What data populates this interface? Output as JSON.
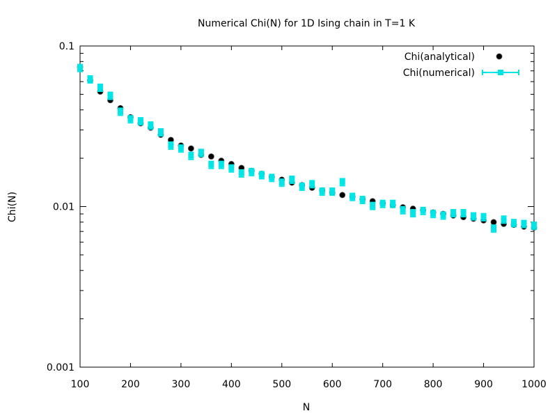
{
  "chart_data": {
    "type": "scatter",
    "title": "Numerical Chi(N) for 1D Ising chain in T=1 K",
    "xlabel": "N",
    "ylabel": "Chi(N)",
    "xlim": [
      100,
      1000
    ],
    "ylim": [
      0.001,
      0.1
    ],
    "yscale": "log",
    "x_ticks": [
      "100",
      "200",
      "300",
      "400",
      "500",
      "600",
      "700",
      "800",
      "900",
      "1000"
    ],
    "x_tick_values": [
      100,
      200,
      300,
      400,
      500,
      600,
      700,
      800,
      900,
      1000
    ],
    "y_ticks": [
      "0.001",
      "0.01",
      "0.1"
    ],
    "y_tick_values": [
      0.001,
      0.01,
      0.1
    ],
    "grid": false,
    "legend_position": "top-right",
    "x": [
      100,
      120,
      140,
      160,
      180,
      200,
      220,
      240,
      260,
      280,
      300,
      320,
      340,
      360,
      380,
      400,
      420,
      440,
      460,
      480,
      500,
      520,
      540,
      560,
      580,
      600,
      620,
      640,
      660,
      680,
      700,
      720,
      740,
      760,
      780,
      800,
      820,
      840,
      860,
      880,
      900,
      920,
      940,
      960,
      980,
      1000
    ],
    "series": [
      {
        "name": "Chi(analytical)",
        "color": "#000000",
        "marker": "filled-circle",
        "values": [
          0.074,
          0.061,
          0.052,
          0.046,
          0.041,
          0.036,
          0.033,
          0.031,
          0.028,
          0.026,
          0.024,
          0.023,
          0.021,
          0.0205,
          0.0193,
          0.0184,
          0.0174,
          0.0167,
          0.016,
          0.0153,
          0.0147,
          0.0141,
          0.0136,
          0.0131,
          0.0126,
          0.0122,
          0.0118,
          0.0115,
          0.0111,
          0.0108,
          0.0105,
          0.0102,
          0.0099,
          0.0097,
          0.0095,
          0.0092,
          0.009,
          0.0088,
          0.0086,
          0.0084,
          0.0082,
          0.008,
          0.0078,
          0.0077,
          0.0075,
          0.0074
        ]
      },
      {
        "name": "Chi(numerical)",
        "color": "#00e5e5",
        "marker": "square-errorbar",
        "values": [
          0.073,
          0.062,
          0.055,
          0.049,
          0.039,
          0.035,
          0.034,
          0.032,
          0.029,
          0.024,
          0.023,
          0.0207,
          0.0216,
          0.0182,
          0.0182,
          0.0173,
          0.0161,
          0.0164,
          0.0157,
          0.0151,
          0.0141,
          0.0147,
          0.0133,
          0.0138,
          0.0124,
          0.0124,
          0.0142,
          0.0115,
          0.011,
          0.0101,
          0.0104,
          0.0104,
          0.0095,
          0.0091,
          0.0094,
          0.009,
          0.0088,
          0.0091,
          0.0091,
          0.0087,
          0.0086,
          0.0073,
          0.0083,
          0.0079,
          0.0078,
          0.0076
        ],
        "error": 0.05
      }
    ]
  }
}
